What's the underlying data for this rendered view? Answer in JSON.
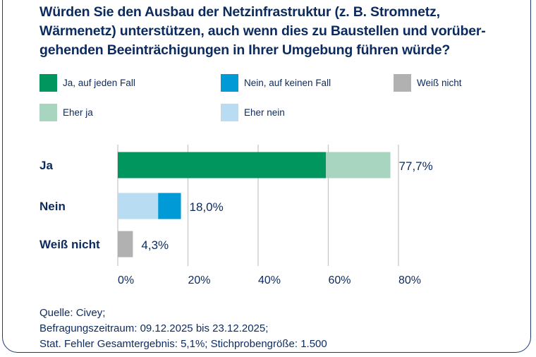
{
  "title": "Würden Sie den Ausbau der Netzinfrastruktur (z. B. Stromnetz, Wärmenetz) unterstützen, auch wenn dies zu Baustellen und vorüber-gehenden Beeinträchigungen in Ihrer Umgebung führen würde?",
  "legend": [
    {
      "label": "Ja, auf jeden Fall",
      "color": "#00965e"
    },
    {
      "label": "Nein, auf keinen Fall",
      "color": "#009ad6"
    },
    {
      "label": "Weiß nicht",
      "color": "#b1b1b1"
    },
    {
      "label": "Eher ja",
      "color": "#a8d5bf"
    },
    {
      "label": "Eher nein",
      "color": "#b8dcf1"
    }
  ],
  "chart_data": {
    "type": "bar",
    "orientation": "horizontal",
    "stacked": true,
    "categories": [
      "Ja",
      "Nein",
      "Weiß nicht"
    ],
    "series": [
      {
        "name": "Ja, auf jeden Fall",
        "values": [
          59.3,
          0,
          0
        ],
        "color": "#00965e"
      },
      {
        "name": "Eher ja",
        "values": [
          18.4,
          0,
          0
        ],
        "color": "#a8d5bf"
      },
      {
        "name": "Eher nein",
        "values": [
          0,
          11.5,
          0
        ],
        "color": "#b8dcf1"
      },
      {
        "name": "Nein, auf keinen Fall",
        "values": [
          0,
          6.5,
          0
        ],
        "color": "#009ad6"
      },
      {
        "name": "Weiß nicht",
        "values": [
          0,
          0,
          4.3
        ],
        "color": "#b1b1b1"
      }
    ],
    "totals": [
      "77,7%",
      "18,0%",
      "4,3%"
    ],
    "total_values": [
      77.7,
      18.0,
      4.3
    ],
    "xlim": [
      0,
      80
    ],
    "xticks": [
      "0%",
      "20%",
      "40%",
      "60%",
      "80%"
    ],
    "xtick_values": [
      0,
      20,
      40,
      60,
      80
    ],
    "grid": true,
    "legend_position": "top"
  },
  "source": [
    "Quelle: Civey;",
    "Befragungszeitraum: 09.12.2025 bis 23.12.2025;",
    "Stat. Fehler Gesamtergebnis: 5,1%; Stichprobengröße: 1.500"
  ]
}
